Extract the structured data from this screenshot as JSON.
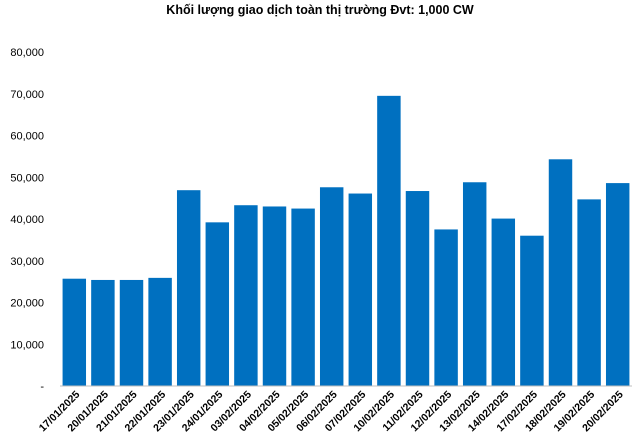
{
  "chart_data": {
    "type": "bar",
    "title": "Khối lượng giao dịch toàn thị trường Đvt: 1,000 CW",
    "xlabel": "",
    "ylabel": "",
    "ylim": [
      0,
      80000
    ],
    "grid": false,
    "legend": "none",
    "bar_color": "#0070C0",
    "y_ticks": [
      "-",
      "10,000",
      "20,000",
      "30,000",
      "40,000",
      "50,000",
      "60,000",
      "70,000",
      "80,000"
    ],
    "categories": [
      "17/01/2025",
      "20/01/2025",
      "21/01/2025",
      "22/01/2025",
      "23/01/2025",
      "24/01/2025",
      "03/02/2025",
      "04/02/2025",
      "05/02/2025",
      "06/02/2025",
      "07/02/2025",
      "10/02/2025",
      "11/02/2025",
      "12/02/2025",
      "13/02/2025",
      "14/02/2025",
      "17/02/2025",
      "18/02/2025",
      "19/02/2025",
      "20/02/2025"
    ],
    "values": [
      25700,
      25400,
      25400,
      25900,
      46900,
      39200,
      43300,
      43000,
      42500,
      47600,
      46100,
      69500,
      46700,
      37500,
      48800,
      40100,
      36000,
      54300,
      44700,
      48600
    ]
  }
}
